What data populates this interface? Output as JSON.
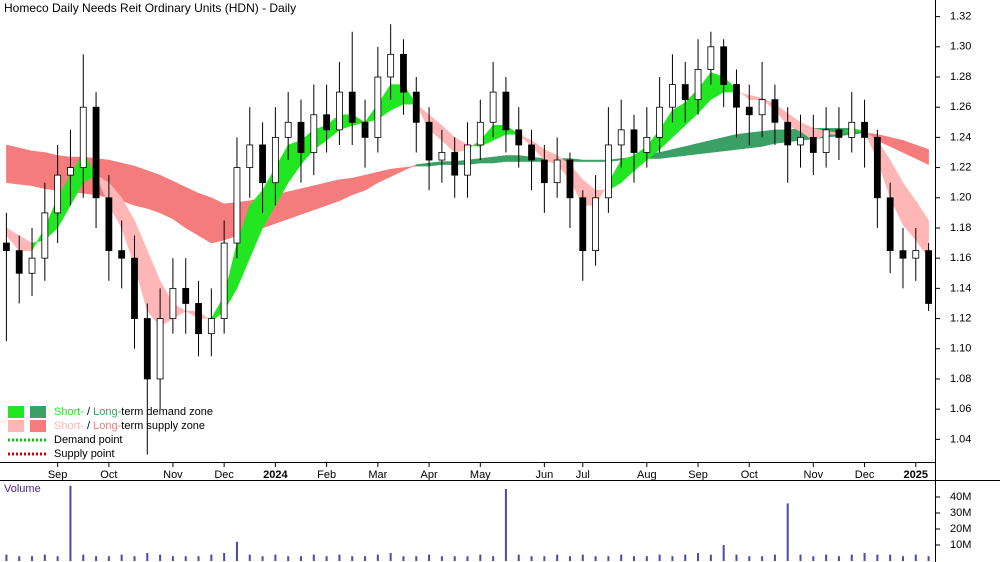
{
  "chart_data": {
    "type": "candlestick",
    "title": "Homeco Daily Needs Reit Ordinary Units (HDN) - Daily",
    "categories": [
      null,
      null,
      null,
      null,
      "Sep",
      null,
      null,
      null,
      "Oct",
      null,
      null,
      null,
      null,
      "Nov",
      null,
      null,
      null,
      "Dec",
      null,
      null,
      null,
      "2024",
      null,
      null,
      null,
      "Feb",
      null,
      null,
      null,
      "Mar",
      null,
      null,
      null,
      "Apr",
      null,
      null,
      null,
      "May",
      null,
      null,
      null,
      null,
      "Jun",
      null,
      null,
      "Jul",
      null,
      null,
      null,
      null,
      "Aug",
      null,
      null,
      null,
      "Sep",
      null,
      null,
      null,
      "Oct",
      null,
      null,
      null,
      null,
      "Nov",
      null,
      null,
      null,
      "Dec",
      null,
      null,
      null,
      "2025",
      null
    ],
    "open": [
      1.17,
      1.165,
      1.15,
      1.16,
      1.19,
      1.215,
      1.22,
      1.26,
      1.2,
      1.165,
      1.16,
      1.12,
      1.08,
      1.12,
      1.14,
      1.13,
      1.11,
      1.12,
      1.17,
      1.22,
      1.235,
      1.21,
      1.24,
      1.25,
      1.23,
      1.255,
      1.245,
      1.27,
      1.25,
      1.24,
      1.28,
      1.295,
      1.27,
      1.25,
      1.225,
      1.23,
      1.215,
      1.235,
      1.25,
      1.27,
      1.245,
      1.235,
      1.225,
      1.21,
      1.225,
      1.2,
      1.165,
      1.2,
      1.235,
      1.245,
      1.23,
      1.24,
      1.26,
      1.275,
      1.265,
      1.285,
      1.3,
      1.275,
      1.26,
      1.255,
      1.265,
      1.25,
      1.235,
      1.24,
      1.23,
      1.245,
      1.24,
      1.25,
      1.24,
      1.2,
      1.165,
      1.16,
      1.165
    ],
    "high": [
      1.19,
      1.175,
      1.18,
      1.21,
      1.235,
      1.245,
      1.295,
      1.27,
      1.215,
      1.185,
      1.175,
      1.13,
      1.14,
      1.16,
      1.16,
      1.145,
      1.14,
      1.185,
      1.24,
      1.26,
      1.25,
      1.26,
      1.27,
      1.265,
      1.275,
      1.275,
      1.29,
      1.31,
      1.265,
      1.3,
      1.315,
      1.305,
      1.28,
      1.26,
      1.245,
      1.24,
      1.25,
      1.265,
      1.29,
      1.28,
      1.26,
      1.245,
      1.235,
      1.24,
      1.23,
      1.205,
      1.215,
      1.26,
      1.265,
      1.255,
      1.26,
      1.28,
      1.295,
      1.29,
      1.305,
      1.31,
      1.305,
      1.285,
      1.275,
      1.29,
      1.275,
      1.26,
      1.255,
      1.255,
      1.26,
      1.26,
      1.27,
      1.265,
      1.245,
      1.21,
      1.18,
      1.18,
      1.17
    ],
    "low": [
      1.105,
      1.13,
      1.135,
      1.145,
      1.17,
      1.195,
      1.2,
      1.18,
      1.145,
      1.14,
      1.1,
      1.03,
      1.06,
      1.11,
      1.11,
      1.095,
      1.095,
      1.11,
      1.16,
      1.2,
      1.19,
      1.195,
      1.225,
      1.21,
      1.215,
      1.23,
      1.235,
      1.235,
      1.22,
      1.23,
      1.265,
      1.255,
      1.23,
      1.205,
      1.21,
      1.2,
      1.2,
      1.225,
      1.24,
      1.23,
      1.22,
      1.205,
      1.19,
      1.2,
      1.18,
      1.145,
      1.155,
      1.19,
      1.22,
      1.21,
      1.22,
      1.23,
      1.25,
      1.25,
      1.255,
      1.275,
      1.26,
      1.24,
      1.235,
      1.24,
      1.235,
      1.21,
      1.22,
      1.215,
      1.22,
      1.225,
      1.23,
      1.22,
      1.18,
      1.15,
      1.14,
      1.145,
      1.125
    ],
    "close": [
      1.165,
      1.15,
      1.16,
      1.19,
      1.215,
      1.22,
      1.26,
      1.2,
      1.165,
      1.16,
      1.12,
      1.08,
      1.12,
      1.14,
      1.13,
      1.11,
      1.12,
      1.17,
      1.22,
      1.235,
      1.21,
      1.24,
      1.25,
      1.23,
      1.255,
      1.245,
      1.27,
      1.25,
      1.24,
      1.28,
      1.295,
      1.27,
      1.25,
      1.225,
      1.23,
      1.215,
      1.235,
      1.25,
      1.27,
      1.245,
      1.235,
      1.225,
      1.21,
      1.225,
      1.2,
      1.165,
      1.2,
      1.235,
      1.245,
      1.23,
      1.24,
      1.26,
      1.275,
      1.265,
      1.285,
      1.3,
      1.275,
      1.26,
      1.255,
      1.265,
      1.25,
      1.235,
      1.24,
      1.23,
      1.245,
      1.24,
      1.25,
      1.24,
      1.2,
      1.165,
      1.16,
      1.165,
      1.13
    ],
    "zones": {
      "long": {
        "fast": [
          1.21,
          1.209,
          1.208,
          1.206,
          1.205,
          1.204,
          1.203,
          1.202,
          1.2,
          1.198,
          1.195,
          1.193,
          1.19,
          1.186,
          1.18,
          1.175,
          1.17,
          1.172,
          1.175,
          1.178,
          1.18,
          1.183,
          1.186,
          1.189,
          1.192,
          1.195,
          1.198,
          1.202,
          1.205,
          1.21,
          1.214,
          1.218,
          1.222,
          1.223,
          1.224,
          1.224,
          1.225,
          1.226,
          1.227,
          1.228,
          1.228,
          1.227,
          1.226,
          1.226,
          1.226,
          1.225,
          1.225,
          1.225,
          1.226,
          1.227,
          1.229,
          1.23,
          1.232,
          1.234,
          1.236,
          1.238,
          1.24,
          1.242,
          1.243,
          1.244,
          1.245,
          1.245,
          1.246,
          1.246,
          1.246,
          1.246,
          1.246,
          1.244,
          1.238,
          1.234,
          1.23,
          1.226,
          1.222
        ],
        "slow": [
          1.235,
          1.233,
          1.231,
          1.23,
          1.228,
          1.227,
          1.227,
          1.226,
          1.225,
          1.223,
          1.221,
          1.218,
          1.215,
          1.211,
          1.207,
          1.203,
          1.2,
          1.196,
          1.197,
          1.198,
          1.2,
          1.202,
          1.204,
          1.206,
          1.208,
          1.21,
          1.212,
          1.213,
          1.215,
          1.217,
          1.219,
          1.22,
          1.221,
          1.221,
          1.222,
          1.222,
          1.222,
          1.223,
          1.223,
          1.224,
          1.224,
          1.224,
          1.224,
          1.224,
          1.224,
          1.224,
          1.224,
          1.224,
          1.225,
          1.225,
          1.226,
          1.226,
          1.227,
          1.228,
          1.229,
          1.23,
          1.231,
          1.232,
          1.233,
          1.234,
          1.236,
          1.237,
          1.238,
          1.239,
          1.24,
          1.241,
          1.242,
          1.243,
          1.242,
          1.24,
          1.238,
          1.235,
          1.232
        ],
        "demand_color": "#3aa066",
        "supply_color": "#f47c7c"
      },
      "short": {
        "fast": [
          1.175,
          1.165,
          1.165,
          1.18,
          1.2,
          1.215,
          1.23,
          1.215,
          1.195,
          1.18,
          1.155,
          1.125,
          1.115,
          1.12,
          1.125,
          1.12,
          1.12,
          1.135,
          1.17,
          1.195,
          1.205,
          1.22,
          1.235,
          1.238,
          1.245,
          1.248,
          1.255,
          1.255,
          1.25,
          1.262,
          1.275,
          1.275,
          1.262,
          1.245,
          1.238,
          1.23,
          1.232,
          1.238,
          1.248,
          1.248,
          1.242,
          1.234,
          1.225,
          1.222,
          1.212,
          1.195,
          1.195,
          1.21,
          1.225,
          1.228,
          1.234,
          1.245,
          1.258,
          1.263,
          1.272,
          1.283,
          1.28,
          1.272,
          1.265,
          1.265,
          1.258,
          1.248,
          1.244,
          1.238,
          1.242,
          1.242,
          1.246,
          1.244,
          1.225,
          1.2,
          1.182,
          1.172,
          1.16
        ],
        "slow": [
          1.18,
          1.175,
          1.17,
          1.172,
          1.18,
          1.195,
          1.21,
          1.215,
          1.21,
          1.2,
          1.185,
          1.165,
          1.145,
          1.13,
          1.125,
          1.125,
          1.118,
          1.125,
          1.14,
          1.16,
          1.18,
          1.195,
          1.21,
          1.222,
          1.232,
          1.238,
          1.245,
          1.248,
          1.25,
          1.252,
          1.258,
          1.262,
          1.262,
          1.255,
          1.248,
          1.24,
          1.235,
          1.234,
          1.238,
          1.242,
          1.242,
          1.238,
          1.232,
          1.228,
          1.222,
          1.212,
          1.205,
          1.205,
          1.21,
          1.218,
          1.225,
          1.232,
          1.24,
          1.248,
          1.256,
          1.265,
          1.27,
          1.27,
          1.268,
          1.266,
          1.262,
          1.256,
          1.25,
          1.246,
          1.244,
          1.243,
          1.244,
          1.244,
          1.238,
          1.225,
          1.21,
          1.198,
          1.185
        ],
        "demand_color": "#22e622",
        "supply_color": "#ffb6b6"
      }
    },
    "ylim": [
      1.025,
      1.331
    ],
    "yticks": [
      1.04,
      1.06,
      1.08,
      {
        "value": 1.1,
        "label": "1.10"
      },
      1.12,
      1.14,
      1.16,
      1.18,
      {
        "value": 1.2,
        "label": "1.20"
      },
      1.22,
      1.24,
      1.26,
      1.28,
      {
        "value": 1.3,
        "label": "1.30"
      },
      1.32
    ],
    "legend": {
      "position": "lower left",
      "items": [
        {
          "parts": [
            "Short-",
            " / ",
            "Long-",
            "term demand zone"
          ],
          "part_colors": [
            "#22e622",
            "#000000",
            "#3aa066",
            "#000000"
          ],
          "swatches": [
            "#22e622",
            "#3aa066"
          ]
        },
        {
          "parts": [
            "Short-",
            " / ",
            "Long-",
            "term supply zone"
          ],
          "part_colors": [
            "#ffb6b6",
            "#000000",
            "#f47c7c",
            "#000000"
          ],
          "swatches": [
            "#ffb6b6",
            "#f47c7c"
          ]
        },
        {
          "parts": [
            "Demand point"
          ],
          "part_colors": [
            "#000000"
          ],
          "dotted": "#00cc00"
        },
        {
          "parts": [
            "Supply point"
          ],
          "part_colors": [
            "#000000"
          ],
          "dotted": "#dd0000"
        }
      ]
    },
    "volume": {
      "title": "Volume",
      "values": [
        4,
        3,
        3,
        4,
        3,
        47,
        4,
        3,
        3,
        4,
        3,
        5,
        4,
        3,
        3,
        3,
        4,
        5,
        12,
        4,
        3,
        4,
        3,
        3,
        4,
        3,
        4,
        3,
        3,
        4,
        5,
        3,
        3,
        4,
        3,
        3,
        3,
        4,
        3,
        45,
        4,
        3,
        3,
        4,
        3,
        4,
        3,
        3,
        4,
        3,
        3,
        4,
        3,
        4,
        5,
        4,
        10,
        4,
        3,
        3,
        4,
        36,
        4,
        3,
        4,
        3,
        4,
        5,
        4,
        4,
        3,
        4,
        3
      ],
      "color": "#4a4aa8",
      "ylim": [
        0,
        50
      ],
      "yticks": [
        {
          "value": 10,
          "label": "10M"
        },
        {
          "value": 20,
          "label": "20M"
        },
        {
          "value": 30,
          "label": "30M"
        },
        {
          "value": 40,
          "label": "40M"
        }
      ]
    }
  }
}
